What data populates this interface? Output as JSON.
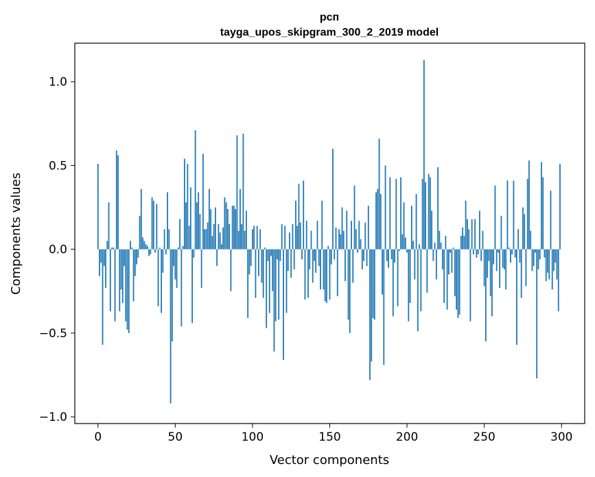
{
  "chart_data": {
    "type": "bar",
    "title": "рсп",
    "subtitle": "tayga_upos_skipgram_300_2_2019 model",
    "xlabel": "Vector components",
    "ylabel": "Components values",
    "xlim": [
      -15,
      315
    ],
    "ylim": [
      -1.04,
      1.23
    ],
    "xticks": [
      0,
      50,
      100,
      150,
      200,
      250,
      300
    ],
    "xtick_labels": [
      "0",
      "50",
      "100",
      "150",
      "200",
      "250",
      "300"
    ],
    "yticks": [
      -1.0,
      -0.5,
      0.0,
      0.5,
      1.0
    ],
    "ytick_labels": [
      "−1.0",
      "−0.5",
      "0.0",
      "0.5",
      "1.0"
    ],
    "grid": false,
    "bar_color": "#1f77b4",
    "x": "0..299",
    "values": [
      0.51,
      -0.16,
      -0.08,
      -0.57,
      -0.1,
      -0.23,
      0.05,
      0.28,
      -0.37,
      0.01,
      0.01,
      -0.43,
      0.59,
      0.56,
      -0.37,
      -0.24,
      -0.32,
      -0.1,
      -0.43,
      -0.48,
      -0.5,
      0.05,
      0.01,
      -0.31,
      -0.16,
      -0.09,
      -0.05,
      0.2,
      0.36,
      0.07,
      0.05,
      0.03,
      0.02,
      -0.04,
      -0.03,
      0.31,
      0.29,
      -0.02,
      0.27,
      -0.34,
      0.01,
      -0.38,
      -0.14,
      0.12,
      -0.03,
      0.34,
      0.12,
      -0.92,
      -0.55,
      -0.1,
      -0.18,
      -0.23,
      0.01,
      0.18,
      -0.46,
      0.02,
      0.54,
      0.28,
      0.51,
      0.14,
      0.37,
      -0.44,
      -0.05,
      0.71,
      0.28,
      0.34,
      0.21,
      -0.23,
      0.57,
      0.12,
      0.12,
      0.16,
      0.36,
      0.24,
      0.08,
      0.15,
      0.25,
      -0.1,
      0.15,
      0.1,
      0.03,
      0.13,
      0.31,
      0.28,
      0.24,
      0.15,
      -0.25,
      0.26,
      0.26,
      0.24,
      0.68,
      0.11,
      0.36,
      0.15,
      0.69,
      0.11,
      0.23,
      -0.41,
      -0.15,
      -0.1,
      0.12,
      0.14,
      -0.29,
      0.14,
      -0.16,
      0.12,
      -0.2,
      -0.29,
      0.01,
      -0.47,
      -0.07,
      -0.38,
      -0.04,
      -0.25,
      -0.61,
      -0.43,
      -0.06,
      -0.42,
      -0.07,
      0.15,
      -0.66,
      0.14,
      -0.38,
      -0.13,
      0.1,
      -0.17,
      0.15,
      -0.12,
      0.29,
      0.14,
      0.39,
      0.16,
      -0.06,
      0.41,
      -0.3,
      0.17,
      -0.29,
      -0.12,
      0.11,
      -0.2,
      -0.07,
      -0.14,
      0.17,
      -0.1,
      -0.24,
      0.29,
      -0.24,
      -0.31,
      -0.32,
      0.02,
      -0.3,
      -0.09,
      0.6,
      -0.06,
      0.13,
      -0.28,
      0.12,
      0.09,
      0.25,
      0.11,
      -0.19,
      0.23,
      -0.42,
      -0.5,
      0.17,
      -0.2,
      0.38,
      0.12,
      -0.02,
      0.17,
      0.06,
      -0.12,
      -0.07,
      0.16,
      -0.1,
      0.26,
      -0.78,
      -0.67,
      -0.41,
      -0.42,
      0.34,
      0.36,
      0.66,
      0.33,
      -0.27,
      -0.69,
      0.5,
      -0.07,
      -0.11,
      0.43,
      -0.06,
      -0.4,
      -0.08,
      0.42,
      -0.34,
      -0.01,
      0.43,
      0.09,
      0.28,
      0.07,
      -0.02,
      -0.43,
      -0.32,
      0.26,
      0.05,
      -0.18,
      0.33,
      -0.49,
      0.03,
      -0.37,
      0.42,
      1.13,
      0.4,
      -0.26,
      0.45,
      0.43,
      0.23,
      -0.07,
      0.04,
      -0.18,
      0.49,
      0.11,
      0.04,
      -0.12,
      -0.32,
      0.08,
      -0.36,
      -0.15,
      -0.02,
      -0.14,
      0.01,
      -0.28,
      -0.36,
      -0.41,
      -0.39,
      0.08,
      0.13,
      0.08,
      0.29,
      0.18,
      0.12,
      -0.43,
      0.18,
      -0.03,
      0.18,
      -0.05,
      -0.03,
      0.23,
      -0.07,
      0.11,
      -0.22,
      -0.55,
      -0.17,
      -0.07,
      -0.28,
      -0.4,
      -0.09,
      0.38,
      -0.13,
      -0.02,
      -0.23,
      0.2,
      -0.11,
      -0.12,
      -0.24,
      0.41,
      0.01,
      -0.08,
      -0.03,
      0.41,
      -0.05,
      -0.57,
      0.12,
      -0.08,
      -0.29,
      0.25,
      0.21,
      -0.22,
      0.42,
      0.53,
      0.11,
      -0.13,
      -0.1,
      -0.02,
      -0.77,
      -0.12,
      -0.06,
      0.52,
      0.43,
      -0.05,
      -0.19,
      -0.14,
      -0.18,
      0.35,
      -0.24,
      -0.13,
      -0.08,
      -0.18,
      -0.37,
      0.51
    ]
  }
}
